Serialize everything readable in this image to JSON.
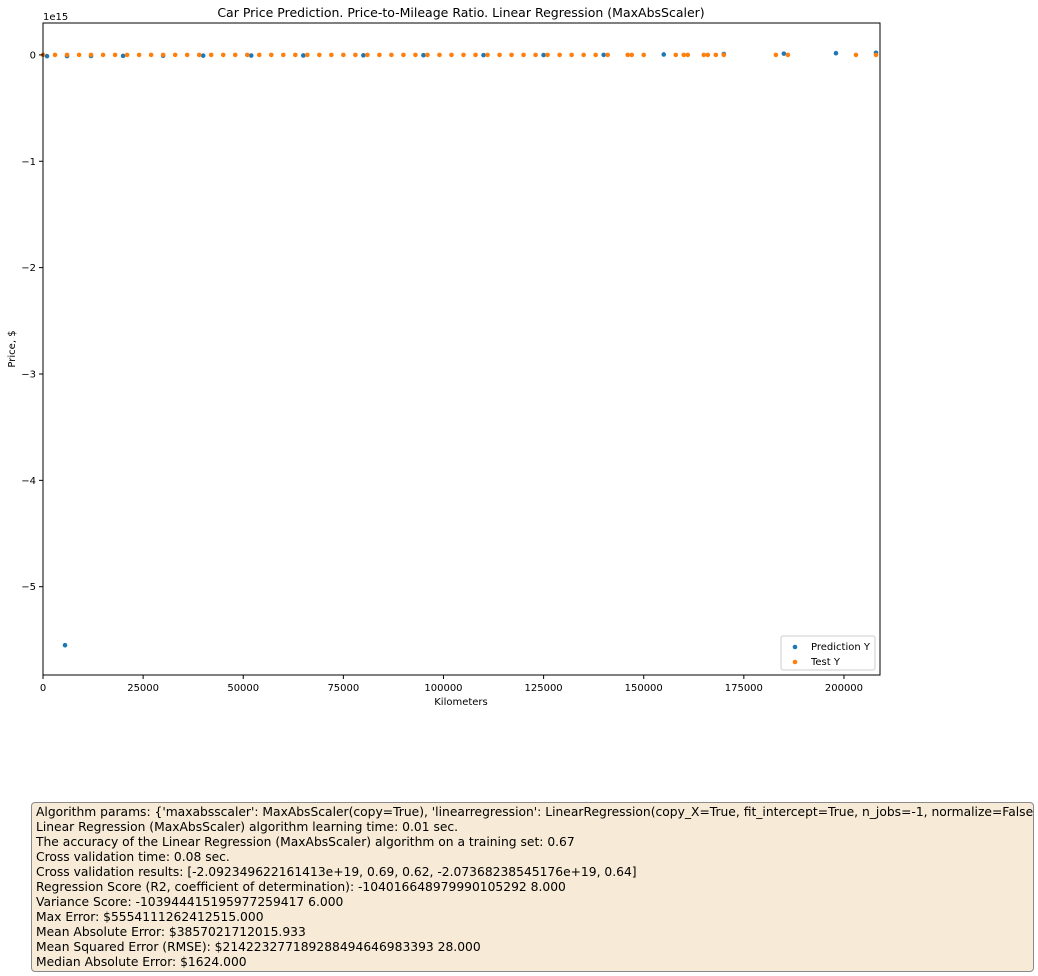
{
  "chart_data": {
    "type": "scatter",
    "title": "Car Price Prediction. Price-to-Mileage Ratio. Linear Regression (MaxAbsScaler)",
    "xlabel": "Kilometers",
    "ylabel": "Price, $",
    "y_offset_text": "1e15",
    "xlim": [
      0,
      209000
    ],
    "ylim": [
      -5.83,
      0.3
    ],
    "y_scale_factor": 1000000000000000.0,
    "xticks": [
      0,
      25000,
      50000,
      75000,
      100000,
      125000,
      150000,
      175000,
      200000
    ],
    "yticks": [
      0,
      -1,
      -2,
      -3,
      -4,
      -5
    ],
    "ytick_labels": [
      "0",
      "−1",
      "−2",
      "−3",
      "−4",
      "−5"
    ],
    "grid": false,
    "legend_placement": "lower-right",
    "series": [
      {
        "name": "Prediction Y",
        "color": "#1f77b4",
        "points": [
          [
            5500,
            -5.55
          ],
          [
            1000,
            -0.012
          ],
          [
            6000,
            -0.011
          ],
          [
            12000,
            -0.01
          ],
          [
            20000,
            -0.009
          ],
          [
            30000,
            -0.008
          ],
          [
            40000,
            -0.007
          ],
          [
            52000,
            -0.006
          ],
          [
            65000,
            -0.005
          ],
          [
            80000,
            -0.004
          ],
          [
            95000,
            -0.003
          ],
          [
            110000,
            -0.002
          ],
          [
            125000,
            -0.001
          ],
          [
            140000,
            0.0
          ],
          [
            155000,
            0.004
          ],
          [
            170000,
            0.008
          ],
          [
            185000,
            0.012
          ],
          [
            198000,
            0.016
          ],
          [
            208000,
            0.02
          ]
        ]
      },
      {
        "name": "Test Y",
        "color": "#ff7f0e",
        "points": [
          [
            0,
            0
          ],
          [
            3000,
            0
          ],
          [
            6000,
            0
          ],
          [
            9000,
            0
          ],
          [
            12000,
            0
          ],
          [
            15000,
            0
          ],
          [
            18000,
            0
          ],
          [
            21000,
            0
          ],
          [
            24000,
            0
          ],
          [
            27000,
            0
          ],
          [
            30000,
            0
          ],
          [
            33000,
            0
          ],
          [
            36000,
            0
          ],
          [
            39000,
            0
          ],
          [
            42000,
            0
          ],
          [
            45000,
            0
          ],
          [
            48000,
            0
          ],
          [
            51000,
            0
          ],
          [
            54000,
            0
          ],
          [
            57000,
            0
          ],
          [
            60000,
            0
          ],
          [
            63000,
            0
          ],
          [
            66000,
            0
          ],
          [
            69000,
            0
          ],
          [
            72000,
            0
          ],
          [
            75000,
            0
          ],
          [
            78000,
            0
          ],
          [
            81000,
            0
          ],
          [
            84000,
            0
          ],
          [
            87000,
            0
          ],
          [
            90000,
            0
          ],
          [
            93000,
            0
          ],
          [
            96000,
            0
          ],
          [
            99000,
            0
          ],
          [
            102000,
            0
          ],
          [
            105000,
            0
          ],
          [
            108000,
            0
          ],
          [
            111000,
            0
          ],
          [
            114000,
            0
          ],
          [
            117000,
            0
          ],
          [
            120000,
            0
          ],
          [
            123000,
            0
          ],
          [
            126000,
            0
          ],
          [
            129000,
            0
          ],
          [
            132000,
            0
          ],
          [
            135000,
            0
          ],
          [
            138000,
            0
          ],
          [
            141000,
            0
          ],
          [
            146000,
            0
          ],
          [
            147000,
            0
          ],
          [
            150000,
            0
          ],
          [
            158000,
            0
          ],
          [
            160000,
            0
          ],
          [
            161000,
            0
          ],
          [
            165000,
            0
          ],
          [
            166000,
            0
          ],
          [
            168000,
            0
          ],
          [
            170000,
            0
          ],
          [
            183000,
            0
          ],
          [
            186000,
            0
          ],
          [
            203000,
            0
          ],
          [
            208000,
            0
          ]
        ]
      }
    ]
  },
  "info": {
    "lines": [
      "Algorithm params: {'maxabsscaler': MaxAbsScaler(copy=True), 'linearregression': LinearRegression(copy_X=True, fit_intercept=True, n_jobs=-1, normalize=False)}",
      "Linear Regression (MaxAbsScaler) algorithm learning time: 0.01 sec.",
      "The accuracy of the Linear Regression (MaxAbsScaler) algorithm on a training set: 0.67",
      "Cross validation time: 0.08 sec.",
      "Cross validation results: [-2.092349622161413e+19, 0.69, 0.62, -2.07368238545176e+19, 0.64]",
      "Regression Score (R2, coefficient of determination): -104016648979990105292 8.000",
      "Variance Score: -103944415195977259417 6.000",
      "Max Error: $5554111262412515.000",
      "Mean Absolute Error: $3857021712015.933",
      "Mean Squared Error (RMSE): $214223277189288494646983393 28.000",
      "Median Absolute Error: $1624.000"
    ]
  }
}
